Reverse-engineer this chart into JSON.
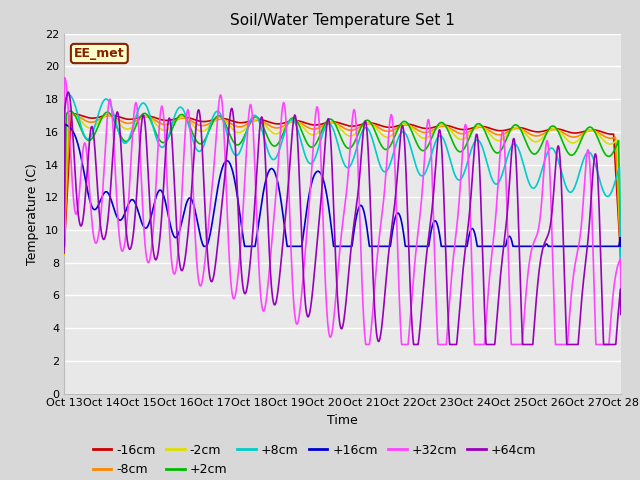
{
  "title": "Soil/Water Temperature Set 1",
  "xlabel": "Time",
  "ylabel": "Temperature (C)",
  "ylim": [
    0,
    22
  ],
  "xlim": [
    0,
    15
  ],
  "fig_bg_color": "#d8d8d8",
  "plot_bg_color": "#e8e8e8",
  "annotation_text": "EE_met",
  "annotation_bg": "#ffffcc",
  "annotation_border": "#882200",
  "xtick_labels": [
    "Oct 13",
    "Oct 14",
    "Oct 15",
    "Oct 16",
    "Oct 17",
    "Oct 18",
    "Oct 19",
    "Oct 20",
    "Oct 21",
    "Oct 22",
    "Oct 23",
    "Oct 24",
    "Oct 25",
    "Oct 26",
    "Oct 27",
    "Oct 28"
  ],
  "series": [
    {
      "label": "-16cm",
      "color": "#cc0000"
    },
    {
      "label": "-8cm",
      "color": "#ff8800"
    },
    {
      "label": "-2cm",
      "color": "#dddd00"
    },
    {
      "label": "+2cm",
      "color": "#00bb00"
    },
    {
      "label": "+8cm",
      "color": "#00cccc"
    },
    {
      "label": "+16cm",
      "color": "#0000cc"
    },
    {
      "label": "+32cm",
      "color": "#ff44ff"
    },
    {
      "label": "+64cm",
      "color": "#9900bb"
    }
  ],
  "grid_color": "#ffffff",
  "tick_fontsize": 8,
  "legend_fontsize": 9,
  "title_fontsize": 11,
  "linewidth": 1.2
}
